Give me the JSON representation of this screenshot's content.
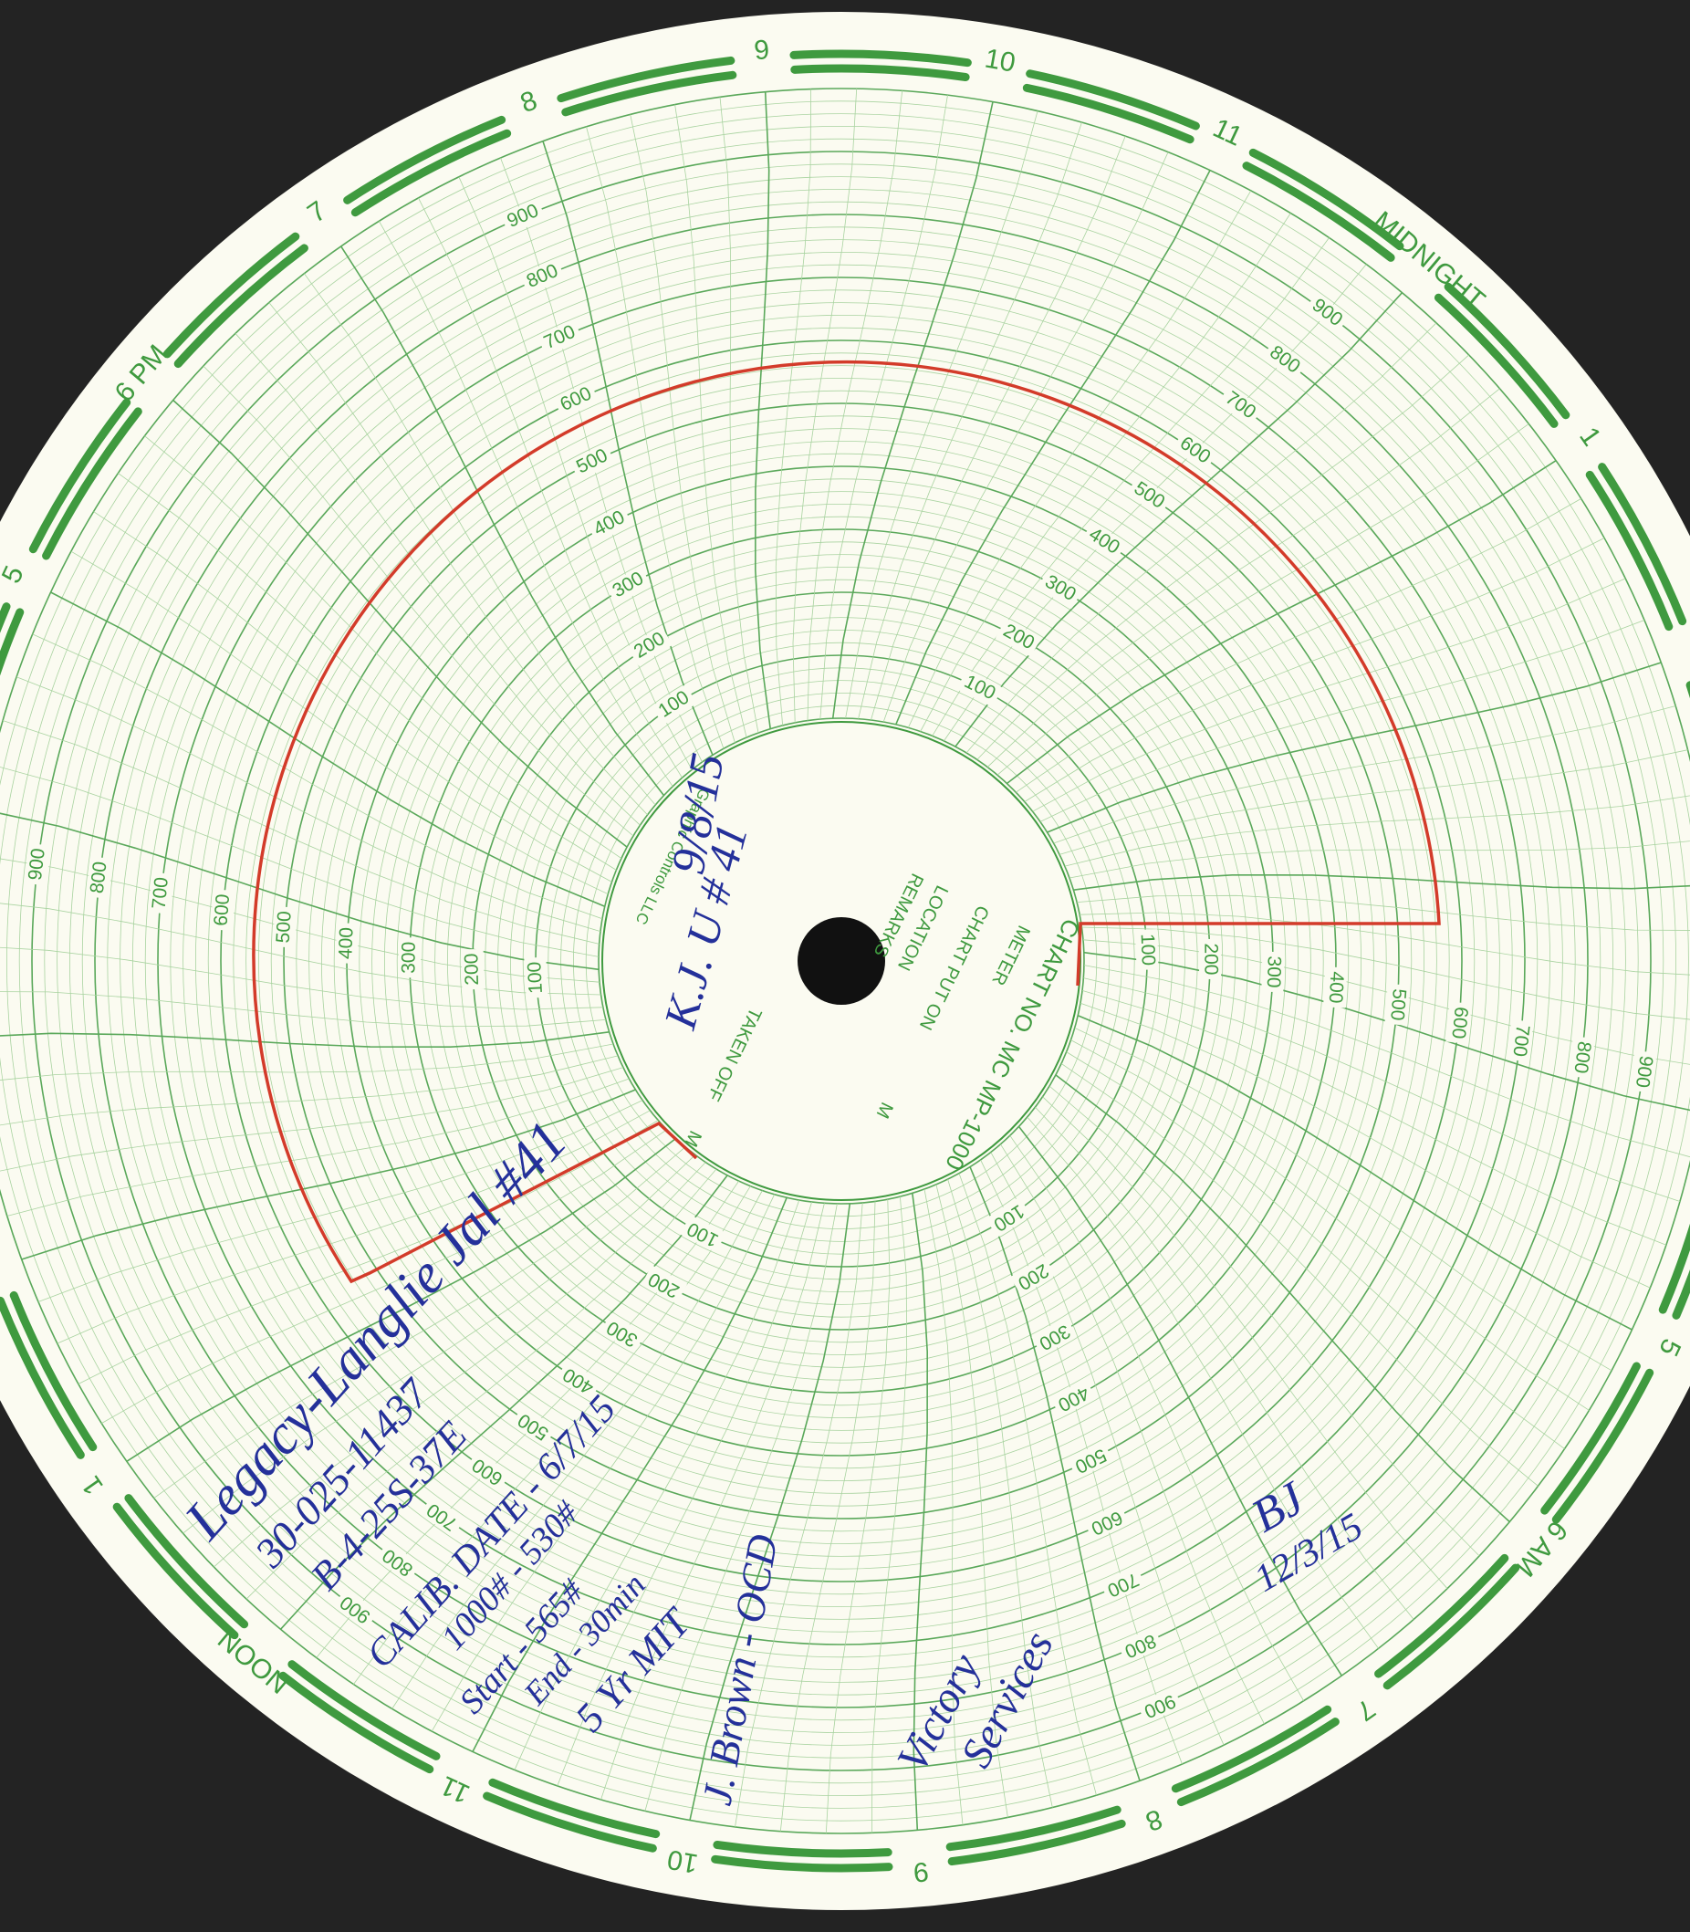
{
  "hour_labels": [
    "MIDNIGHT",
    "1",
    null,
    null,
    null,
    "5",
    "6 AM",
    "7",
    "8",
    "9",
    "10",
    "11",
    "NOON",
    "1",
    null,
    null,
    null,
    "5",
    "6 PM",
    "7",
    "8",
    "9",
    "10",
    "11"
  ],
  "scale_labels": [
    100,
    200,
    300,
    400,
    500,
    600,
    700,
    800,
    900
  ],
  "center": {
    "chart_no": "CHART NO. MC MP-1000",
    "meter": "METER",
    "chart_put_on": "CHART PUT ON",
    "location": "LOCATION",
    "remarks": "REMARKS",
    "taken_off": "TAKEN OFF",
    "m": "M",
    "brand": "Graphic Controls LLC"
  },
  "handwriting": {
    "date": "9/8/15",
    "well": "K.J. U # 41",
    "notes": [
      "Legacy-Langlie Jal #41",
      "30-025-11437",
      "B-4-25S-37E",
      "CALIB. DATE - 6/7/15",
      "1000# - 530#",
      "Start - 565#",
      "End - 30min",
      "5 Yr MIT"
    ],
    "signature": "J. Brown - OCD",
    "company": [
      "Victory",
      "Services"
    ],
    "initials": "BJ",
    "initials_date": "12/3/15"
  }
}
